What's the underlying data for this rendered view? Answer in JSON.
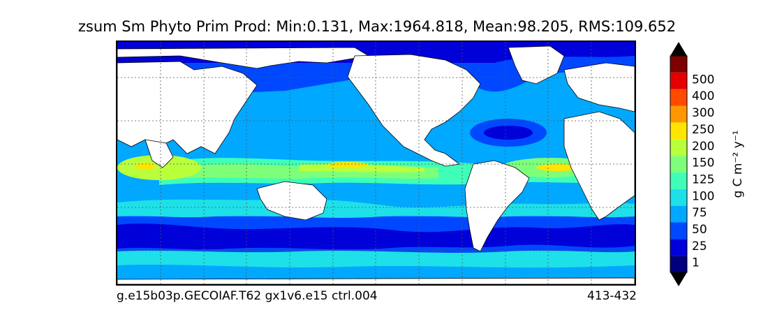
{
  "title": "zsum Sm Phyto Prim Prod: Min:0.131, Max:1964.818, Mean:98.205, RMS:109.652",
  "footer": {
    "case_name": "g.e15b03p.GECOIAF.T62 gx1v6.e15 ctrl.004",
    "years": "413-432"
  },
  "colorbar": {
    "unit_label": "g C m⁻² y⁻¹",
    "levels": [
      {
        "label": "1",
        "color": "#00007f"
      },
      {
        "label": "25",
        "color": "#0000d9"
      },
      {
        "label": "50",
        "color": "#0048ff"
      },
      {
        "label": "75",
        "color": "#00a8ff"
      },
      {
        "label": "100",
        "color": "#1ee0e8"
      },
      {
        "label": "125",
        "color": "#3fffb8"
      },
      {
        "label": "150",
        "color": "#7dff7a"
      },
      {
        "label": "200",
        "color": "#b9ff3c"
      },
      {
        "label": "250",
        "color": "#ffe500"
      },
      {
        "label": "300",
        "color": "#ff9800"
      },
      {
        "label": "400",
        "color": "#ff4a00"
      },
      {
        "label": "500",
        "color": "#e40000"
      }
    ],
    "under_color": "#000000",
    "over_color": "#000000",
    "top_band_color": "#7f0000"
  }
}
